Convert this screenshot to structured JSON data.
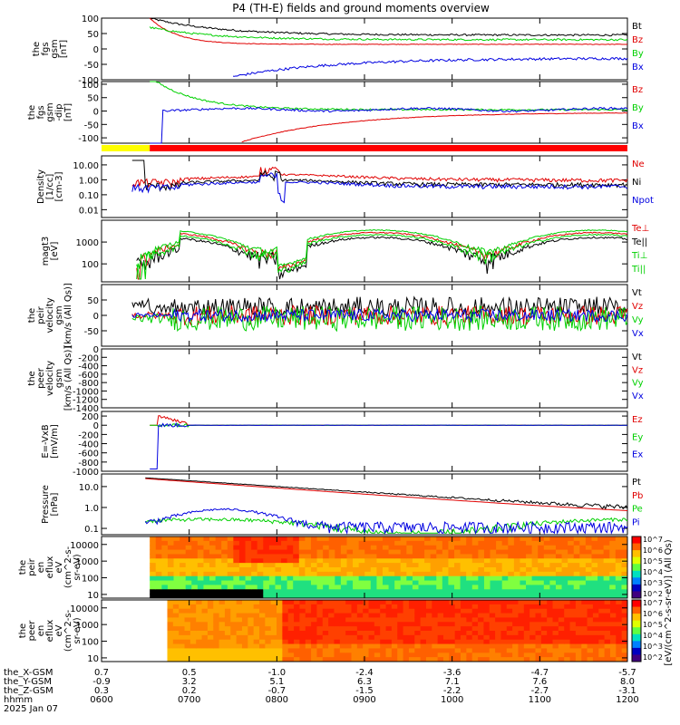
{
  "chart_data": {
    "title": "P4 (TH-E) fields and ground moments overview",
    "type": "line",
    "time_axis": {
      "rows": [
        {
          "label": "the_X-GSM",
          "values": [
            "0.7",
            "0.5",
            "-1.0",
            "-2.4",
            "-3.6",
            "-4.7",
            "-5.7"
          ]
        },
        {
          "label": "the_Y-GSM",
          "values": [
            "-0.9",
            "3.2",
            "5.1",
            "6.3",
            "7.1",
            "7.6",
            "8.0"
          ]
        },
        {
          "label": "the_Z-GSM",
          "values": [
            "0.3",
            "0.2",
            "-0.7",
            "-1.5",
            "-2.2",
            "-2.7",
            "-3.1"
          ]
        },
        {
          "label": "hhmm",
          "values": [
            "0600",
            "0700",
            "0800",
            "0900",
            "1000",
            "1100",
            "1200"
          ]
        }
      ],
      "date": "2025 Jan 07"
    },
    "panels": [
      {
        "id": "fgs",
        "ylabel": [
          "the",
          "fgs",
          "gsm",
          "[nT]"
        ],
        "yticks": [
          "100",
          "50",
          "0",
          "-50",
          "-100"
        ],
        "ylim": [
          -100,
          100
        ],
        "log": false,
        "series": [
          {
            "name": "Bt",
            "color": "#000000"
          },
          {
            "name": "Bz",
            "color": "#e00000"
          },
          {
            "name": "By",
            "color": "#00d000"
          },
          {
            "name": "Bx",
            "color": "#0000e0"
          }
        ]
      },
      {
        "id": "fgs_dip",
        "ylabel": [
          "the",
          "fgs",
          "gsm",
          "-dip",
          "[nT]"
        ],
        "yticks": [
          "100",
          "50",
          "0",
          "-50",
          "-100"
        ],
        "ylim": [
          -120,
          110
        ],
        "log": false,
        "series": [
          {
            "name": "Bz",
            "color": "#e00000"
          },
          {
            "name": "By",
            "color": "#00d000"
          },
          {
            "name": "Bx",
            "color": "#0000e0"
          }
        ]
      },
      {
        "id": "density",
        "ylabel": [
          "Density",
          "[1/cc]",
          "[cm-3]"
        ],
        "yticks": [
          "10.00",
          "1.00",
          "0.10",
          "0.01"
        ],
        "ylim": [
          0.003,
          40
        ],
        "log": true,
        "series": [
          {
            "name": "Ne",
            "color": "#e00000"
          },
          {
            "name": "Ni",
            "color": "#000000"
          },
          {
            "name": "Npot",
            "color": "#0000e0"
          }
        ]
      },
      {
        "id": "temp",
        "ylabel": [
          "magt3",
          "[eV]"
        ],
        "yticks": [
          "1000",
          "100"
        ],
        "ylim": [
          15,
          10000
        ],
        "log": true,
        "series": [
          {
            "name": "Te⊥",
            "color": "#e00000"
          },
          {
            "name": "Te||",
            "color": "#000000"
          },
          {
            "name": "Ti⊥",
            "color": "#00d000"
          },
          {
            "name": "Ti||",
            "color": "#00d000"
          }
        ]
      },
      {
        "id": "peir_vel",
        "ylabel": [
          "the",
          "peir",
          "velocity",
          "gsm",
          "[km/s (All Qs)]"
        ],
        "yticks": [
          "50",
          "0",
          "-50"
        ],
        "ylim": [
          -100,
          100
        ],
        "log": false,
        "series": [
          {
            "name": "Vt",
            "color": "#000000"
          },
          {
            "name": "Vz",
            "color": "#e00000"
          },
          {
            "name": "Vy",
            "color": "#00d000"
          },
          {
            "name": "Vx",
            "color": "#0000e0"
          }
        ]
      },
      {
        "id": "peer_vel",
        "ylabel": [
          "the",
          "peer",
          "velocity",
          "gsm",
          "[km/s (All Qs)]"
        ],
        "yticks": [
          "0",
          "-200",
          "-400",
          "-600",
          "-800",
          "-1000",
          "-1200",
          "-1400"
        ],
        "ylim": [
          -1400,
          0
        ],
        "log": false,
        "series": [
          {
            "name": "Vt",
            "color": "#000000"
          },
          {
            "name": "Vz",
            "color": "#e00000"
          },
          {
            "name": "Vy",
            "color": "#00d000"
          },
          {
            "name": "Vx",
            "color": "#0000e0"
          }
        ]
      },
      {
        "id": "efield",
        "ylabel": [
          "E=-VxB",
          "[mV/m]"
        ],
        "yticks": [
          "200",
          "0",
          "-200",
          "-400",
          "-600",
          "-800",
          "-1000"
        ],
        "ylim": [
          -1000,
          300
        ],
        "log": false,
        "series": [
          {
            "name": "Ez",
            "color": "#e00000"
          },
          {
            "name": "Ey",
            "color": "#00d000"
          },
          {
            "name": "Ex",
            "color": "#0000e0"
          }
        ]
      },
      {
        "id": "pressure",
        "ylabel": [
          "Pressure",
          "[nPa]"
        ],
        "yticks": [
          "10.0",
          "1.0",
          "0.1"
        ],
        "ylim": [
          0.05,
          40
        ],
        "log": true,
        "series": [
          {
            "name": "Pt",
            "color": "#000000"
          },
          {
            "name": "Pb",
            "color": "#e00000"
          },
          {
            "name": "Pe",
            "color": "#00d000"
          },
          {
            "name": "Pi",
            "color": "#0000e0"
          }
        ]
      },
      {
        "id": "peir_spec",
        "type": "heatmap",
        "ylabel": [
          "the",
          "peir",
          "en",
          "eflux",
          "eV",
          "(cm^2-s-",
          "sr-eV)"
        ],
        "yticks": [
          "10000",
          "1000",
          "100",
          "10"
        ],
        "ylim": [
          6,
          30000
        ],
        "log": true
      },
      {
        "id": "peer_spec",
        "type": "heatmap",
        "ylabel": [
          "the",
          "peer",
          "en",
          "eflux",
          "eV",
          "(cm^2-s-",
          "sr-eV)"
        ],
        "yticks": [
          "10000",
          "1000",
          "100",
          "10"
        ],
        "ylim": [
          6,
          30000
        ],
        "log": true
      }
    ],
    "colorbar": {
      "label": "[eV/(cm^2-s-sr-eV)] (All Qs)",
      "ticks": [
        "10^7",
        "10^6",
        "10^5",
        "10^4",
        "10^3",
        "10^2"
      ]
    },
    "mode_bar": [
      {
        "color": "#ffff00",
        "from_hour": 0,
        "to_hour": 0.55
      },
      {
        "color": "#ff0000",
        "from_hour": 0.55,
        "to_hour": 6
      }
    ]
  }
}
